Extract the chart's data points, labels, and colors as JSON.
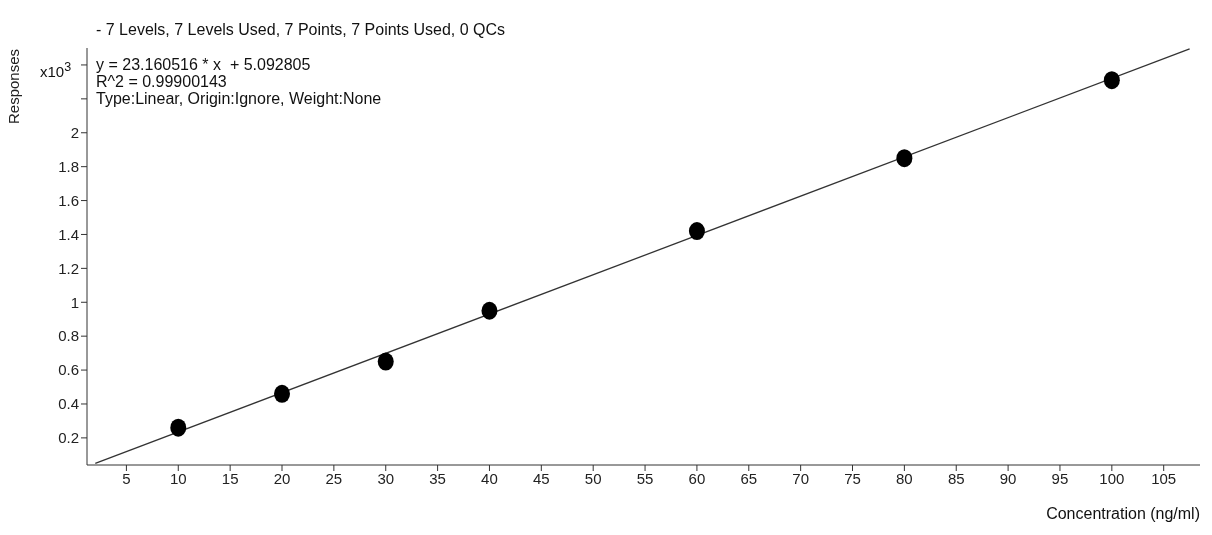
{
  "chart_data": {
    "type": "scatter",
    "title": "- 7 Levels, 7 Levels Used, 7 Points, 7 Points Used, 0 QCs",
    "xlabel": "Concentration (ng/ml)",
    "ylabel": "Responses",
    "annotations": [
      "x10$^{3}$",
      "y = 23.160516 * x  + 5.092805",
      "R^2 = 0.99900143",
      "Type:Linear, Origin:Ignore, Weight:None"
    ],
    "xlim": [
      1.2,
      108.5
    ],
    "ylim": [
      0.04,
      2.5
    ],
    "xticks": [
      5,
      10,
      15,
      20,
      25,
      30,
      35,
      40,
      45,
      50,
      55,
      60,
      65,
      70,
      75,
      80,
      85,
      90,
      95,
      100,
      105
    ],
    "yticks": [
      0.2,
      0.4,
      0.6,
      0.8,
      1,
      1.2,
      1.4,
      1.6,
      1.8,
      2,
      {
        "value": 2.2,
        "label": null
      },
      {
        "value": 2.4,
        "label": null
      }
    ],
    "series": [
      {
        "type": "line",
        "color": "#333333",
        "x": [
          2,
          107.5
        ],
        "values": [
          0.05,
          2.495
        ],
        "marker": "none",
        "line_style": "solid"
      },
      {
        "type": "scatter",
        "color": "#000000",
        "x": [
          10,
          20,
          30,
          40,
          60,
          80,
          100
        ],
        "values": [
          0.26,
          0.46,
          0.65,
          0.95,
          1.42,
          1.85,
          2.31
        ],
        "marker": "circle"
      }
    ]
  }
}
